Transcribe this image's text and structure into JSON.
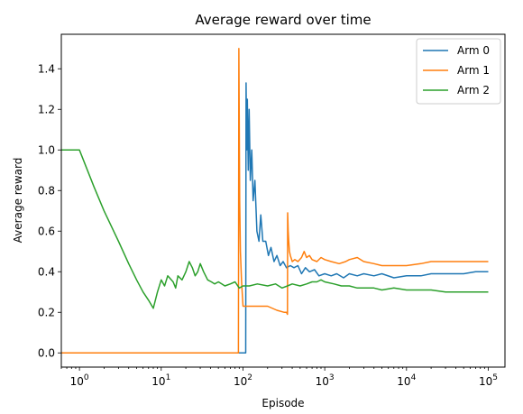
{
  "chart_data": {
    "type": "line",
    "title": "Average reward over time",
    "xlabel": "Episode",
    "ylabel": "Average reward",
    "x_scale": "log",
    "xlim": [
      0.6,
      160000
    ],
    "ylim": [
      -0.07,
      1.57
    ],
    "legend_position": "top-right",
    "grid": false,
    "x_ticks": [
      {
        "value": 1,
        "base": "10",
        "exp": "0"
      },
      {
        "value": 10,
        "base": "10",
        "exp": "1"
      },
      {
        "value": 100,
        "base": "10",
        "exp": "2"
      },
      {
        "value": 1000,
        "base": "10",
        "exp": "3"
      },
      {
        "value": 10000,
        "base": "10",
        "exp": "4"
      },
      {
        "value": 100000,
        "base": "10",
        "exp": "5"
      }
    ],
    "y_ticks": [
      {
        "value": 0.0,
        "label": "0.0"
      },
      {
        "value": 0.2,
        "label": "0.2"
      },
      {
        "value": 0.4,
        "label": "0.4"
      },
      {
        "value": 0.6,
        "label": "0.6"
      },
      {
        "value": 0.8,
        "label": "0.8"
      },
      {
        "value": 1.0,
        "label": "1.0"
      },
      {
        "value": 1.2,
        "label": "1.2"
      },
      {
        "value": 1.4,
        "label": "1.4"
      }
    ],
    "series": [
      {
        "name": "Arm 0",
        "color": "#1f77b4",
        "points": [
          [
            0.6,
            0.0
          ],
          [
            100,
            0.0
          ],
          [
            108,
            0.0
          ],
          [
            109,
            1.33
          ],
          [
            111,
            1.0
          ],
          [
            113,
            1.25
          ],
          [
            116,
            0.9
          ],
          [
            119,
            1.2
          ],
          [
            123,
            0.85
          ],
          [
            128,
            1.0
          ],
          [
            133,
            0.75
          ],
          [
            140,
            0.85
          ],
          [
            148,
            0.6
          ],
          [
            157,
            0.55
          ],
          [
            165,
            0.68
          ],
          [
            175,
            0.55
          ],
          [
            190,
            0.55
          ],
          [
            205,
            0.48
          ],
          [
            220,
            0.52
          ],
          [
            240,
            0.45
          ],
          [
            260,
            0.48
          ],
          [
            285,
            0.43
          ],
          [
            310,
            0.45
          ],
          [
            340,
            0.42
          ],
          [
            380,
            0.43
          ],
          [
            420,
            0.42
          ],
          [
            470,
            0.43
          ],
          [
            520,
            0.39
          ],
          [
            580,
            0.42
          ],
          [
            650,
            0.4
          ],
          [
            750,
            0.41
          ],
          [
            850,
            0.38
          ],
          [
            1000,
            0.39
          ],
          [
            1200,
            0.38
          ],
          [
            1400,
            0.39
          ],
          [
            1700,
            0.37
          ],
          [
            2000,
            0.39
          ],
          [
            2500,
            0.38
          ],
          [
            3000,
            0.39
          ],
          [
            4000,
            0.38
          ],
          [
            5000,
            0.39
          ],
          [
            7000,
            0.37
          ],
          [
            10000,
            0.38
          ],
          [
            15000,
            0.38
          ],
          [
            20000,
            0.39
          ],
          [
            30000,
            0.39
          ],
          [
            50000,
            0.39
          ],
          [
            70000,
            0.4
          ],
          [
            100000,
            0.4
          ]
        ]
      },
      {
        "name": "Arm 1",
        "color": "#ff7f0e",
        "points": [
          [
            0.6,
            0.0
          ],
          [
            85,
            0.0
          ],
          [
            88,
            0.0
          ],
          [
            89,
            1.5
          ],
          [
            91,
            0.75
          ],
          [
            93,
            0.5
          ],
          [
            96,
            0.35
          ],
          [
            100,
            0.23
          ],
          [
            120,
            0.23
          ],
          [
            150,
            0.23
          ],
          [
            200,
            0.23
          ],
          [
            260,
            0.21
          ],
          [
            320,
            0.2
          ],
          [
            340,
            0.2
          ],
          [
            350,
            0.19
          ],
          [
            352,
            0.69
          ],
          [
            357,
            0.6
          ],
          [
            363,
            0.55
          ],
          [
            370,
            0.5
          ],
          [
            380,
            0.48
          ],
          [
            400,
            0.45
          ],
          [
            430,
            0.46
          ],
          [
            470,
            0.45
          ],
          [
            520,
            0.47
          ],
          [
            560,
            0.5
          ],
          [
            600,
            0.47
          ],
          [
            650,
            0.48
          ],
          [
            700,
            0.46
          ],
          [
            800,
            0.45
          ],
          [
            900,
            0.47
          ],
          [
            1000,
            0.46
          ],
          [
            1200,
            0.45
          ],
          [
            1500,
            0.44
          ],
          [
            1800,
            0.45
          ],
          [
            2000,
            0.46
          ],
          [
            2500,
            0.47
          ],
          [
            3000,
            0.45
          ],
          [
            4000,
            0.44
          ],
          [
            5000,
            0.43
          ],
          [
            7000,
            0.43
          ],
          [
            10000,
            0.43
          ],
          [
            15000,
            0.44
          ],
          [
            20000,
            0.45
          ],
          [
            30000,
            0.45
          ],
          [
            50000,
            0.45
          ],
          [
            70000,
            0.45
          ],
          [
            100000,
            0.45
          ]
        ]
      },
      {
        "name": "Arm 2",
        "color": "#2ca02c",
        "points": [
          [
            0.6,
            1.0
          ],
          [
            1,
            1.0
          ],
          [
            1.5,
            0.82
          ],
          [
            2,
            0.7
          ],
          [
            3,
            0.55
          ],
          [
            4,
            0.44
          ],
          [
            5,
            0.36
          ],
          [
            6,
            0.3
          ],
          [
            7,
            0.26
          ],
          [
            8,
            0.22
          ],
          [
            9,
            0.3
          ],
          [
            10,
            0.36
          ],
          [
            11,
            0.33
          ],
          [
            12,
            0.38
          ],
          [
            14,
            0.35
          ],
          [
            15,
            0.32
          ],
          [
            16,
            0.38
          ],
          [
            18,
            0.36
          ],
          [
            20,
            0.4
          ],
          [
            22,
            0.45
          ],
          [
            24,
            0.42
          ],
          [
            26,
            0.38
          ],
          [
            28,
            0.4
          ],
          [
            30,
            0.44
          ],
          [
            33,
            0.4
          ],
          [
            37,
            0.36
          ],
          [
            41,
            0.35
          ],
          [
            45,
            0.34
          ],
          [
            50,
            0.35
          ],
          [
            55,
            0.34
          ],
          [
            60,
            0.33
          ],
          [
            70,
            0.34
          ],
          [
            80,
            0.35
          ],
          [
            90,
            0.32
          ],
          [
            100,
            0.33
          ],
          [
            120,
            0.33
          ],
          [
            150,
            0.34
          ],
          [
            200,
            0.33
          ],
          [
            250,
            0.34
          ],
          [
            300,
            0.32
          ],
          [
            350,
            0.33
          ],
          [
            400,
            0.34
          ],
          [
            500,
            0.33
          ],
          [
            600,
            0.34
          ],
          [
            700,
            0.35
          ],
          [
            800,
            0.35
          ],
          [
            900,
            0.36
          ],
          [
            1000,
            0.35
          ],
          [
            1300,
            0.34
          ],
          [
            1600,
            0.33
          ],
          [
            2000,
            0.33
          ],
          [
            2500,
            0.32
          ],
          [
            3000,
            0.32
          ],
          [
            4000,
            0.32
          ],
          [
            5000,
            0.31
          ],
          [
            7000,
            0.32
          ],
          [
            10000,
            0.31
          ],
          [
            15000,
            0.31
          ],
          [
            20000,
            0.31
          ],
          [
            30000,
            0.3
          ],
          [
            50000,
            0.3
          ],
          [
            70000,
            0.3
          ],
          [
            100000,
            0.3
          ]
        ]
      }
    ]
  }
}
